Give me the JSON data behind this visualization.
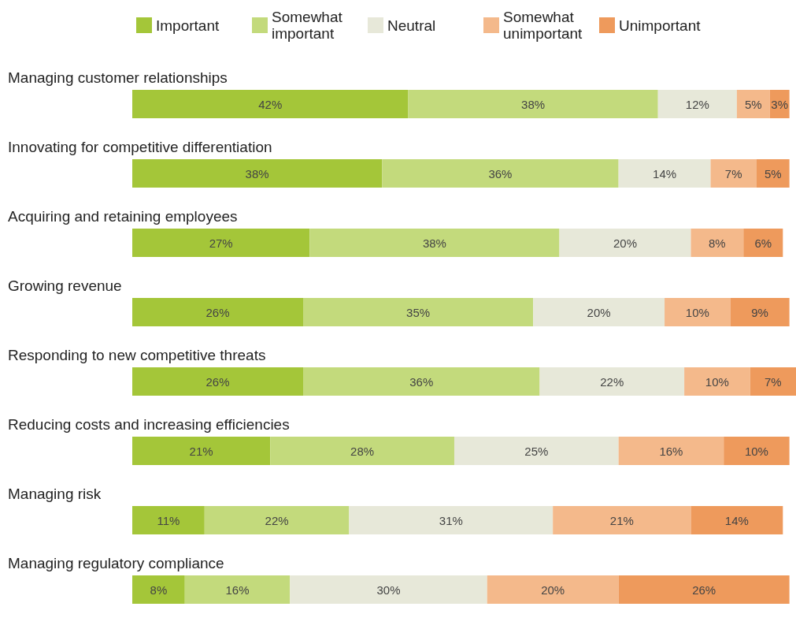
{
  "chart_data": {
    "type": "bar",
    "orientation": "horizontal",
    "stacked": true,
    "legend": "top",
    "categories": [
      "Managing customer relationships",
      "Innovating for competitive differentiation",
      "Acquiring and retaining employees",
      "Growing revenue",
      "Responding to new competitive threats",
      "Reducing costs and increasing efficiencies",
      "Managing risk",
      "Managing regulatory compliance"
    ],
    "series": [
      {
        "name": "Important",
        "color": "#a4c639",
        "values": [
          42,
          38,
          27,
          26,
          26,
          21,
          11,
          8
        ],
        "value_labels": [
          "42%",
          "38%",
          "27%",
          "26%",
          "26%",
          "21%",
          "11%",
          "8%"
        ]
      },
      {
        "name": "Somewhat important",
        "color": "#c3da7c",
        "values": [
          38,
          36,
          38,
          35,
          36,
          28,
          22,
          16
        ],
        "value_labels": [
          "38%",
          "36%",
          "38%",
          "35%",
          "36%",
          "28%",
          "22%",
          "16%"
        ]
      },
      {
        "name": "Neutral",
        "color": "#e7e8d9",
        "values": [
          12,
          14,
          20,
          20,
          22,
          25,
          31,
          30
        ],
        "value_labels": [
          "12%",
          "14%",
          "20%",
          "20%",
          "22%",
          "25%",
          "31%",
          "30%"
        ]
      },
      {
        "name": "Somewhat unimportant",
        "color": "#f4b98b",
        "values": [
          5,
          7,
          8,
          10,
          10,
          16,
          21,
          20
        ],
        "value_labels": [
          "5%",
          "7%",
          "8%",
          "10%",
          "10%",
          "16%",
          "21%",
          "20%"
        ]
      },
      {
        "name": "Unimportant",
        "color": "#ee9a5c",
        "values": [
          3,
          5,
          6,
          9,
          7,
          10,
          14,
          26
        ],
        "value_labels": [
          "3%",
          "5%",
          "6%",
          "9%",
          "7%",
          "10%",
          "14%",
          "26%"
        ]
      }
    ]
  }
}
